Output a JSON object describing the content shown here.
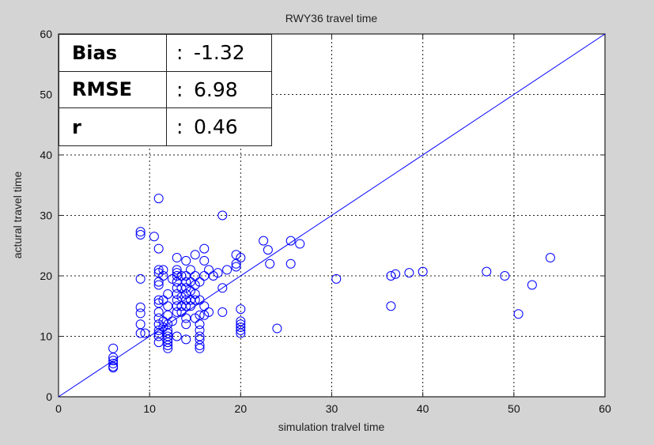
{
  "chart_data": {
    "type": "scatter",
    "title": "RWY36 travel time",
    "xlabel": "simulation tralvel time",
    "ylabel": "actural travel time",
    "xlim": [
      0,
      60
    ],
    "ylim": [
      0,
      60
    ],
    "xticks": [
      0,
      10,
      20,
      30,
      40,
      50,
      60
    ],
    "yticks": [
      0,
      10,
      20,
      30,
      40,
      50,
      60
    ],
    "grid": true,
    "grid_style": "dotted",
    "marker": "open-circle",
    "marker_color": "#0000ff",
    "reference_line": {
      "from": [
        0,
        0
      ],
      "to": [
        60,
        60
      ],
      "color": "#0000ff"
    },
    "points": [
      [
        6,
        8
      ],
      [
        6,
        6.5
      ],
      [
        6,
        6
      ],
      [
        6,
        5.5
      ],
      [
        6,
        5
      ],
      [
        6,
        4.8
      ],
      [
        9,
        27.3
      ],
      [
        9,
        26.8
      ],
      [
        10.5,
        26.5
      ],
      [
        11,
        32.8
      ],
      [
        9,
        19.5
      ],
      [
        9,
        14.8
      ],
      [
        9,
        13.8
      ],
      [
        9,
        12
      ],
      [
        9,
        10.5
      ],
      [
        9.5,
        10.5
      ],
      [
        11,
        24.5
      ],
      [
        11,
        21
      ],
      [
        11,
        20.5
      ],
      [
        11,
        19
      ],
      [
        11,
        18.5
      ],
      [
        11,
        16
      ],
      [
        11,
        15.5
      ],
      [
        11,
        14
      ],
      [
        11,
        13
      ],
      [
        11,
        12
      ],
      [
        11,
        11
      ],
      [
        11,
        10.5
      ],
      [
        11,
        10
      ],
      [
        11,
        9
      ],
      [
        11.5,
        21
      ],
      [
        11.5,
        20
      ],
      [
        11.5,
        16
      ],
      [
        11.5,
        12.5
      ],
      [
        11.5,
        11.5
      ],
      [
        12,
        17
      ],
      [
        12,
        15
      ],
      [
        12,
        13.5
      ],
      [
        12,
        12
      ],
      [
        12,
        11
      ],
      [
        12,
        10.5
      ],
      [
        12,
        10
      ],
      [
        12,
        9.5
      ],
      [
        12,
        9
      ],
      [
        12,
        8.5
      ],
      [
        12,
        8
      ],
      [
        12.5,
        19.5
      ],
      [
        12.5,
        12.5
      ],
      [
        13,
        23
      ],
      [
        13,
        21
      ],
      [
        13,
        20.5
      ],
      [
        13,
        20
      ],
      [
        13,
        19
      ],
      [
        13,
        18
      ],
      [
        13,
        17
      ],
      [
        13,
        16
      ],
      [
        13,
        15
      ],
      [
        13,
        14
      ],
      [
        13,
        10
      ],
      [
        13.5,
        20
      ],
      [
        13.5,
        18
      ],
      [
        13.5,
        16.5
      ],
      [
        13.5,
        15
      ],
      [
        13.5,
        14
      ],
      [
        14,
        22.5
      ],
      [
        14,
        20
      ],
      [
        14,
        19
      ],
      [
        14,
        18
      ],
      [
        14,
        17
      ],
      [
        14,
        16
      ],
      [
        14,
        15
      ],
      [
        14,
        13
      ],
      [
        14,
        12
      ],
      [
        14,
        9.5
      ],
      [
        14.5,
        21
      ],
      [
        14.5,
        19
      ],
      [
        14.5,
        17.5
      ],
      [
        14.5,
        16
      ],
      [
        14.5,
        15
      ],
      [
        15,
        23.5
      ],
      [
        15,
        20
      ],
      [
        15,
        18.5
      ],
      [
        15,
        17
      ],
      [
        15,
        16
      ],
      [
        15,
        13
      ],
      [
        15.5,
        19
      ],
      [
        15.5,
        16
      ],
      [
        15.5,
        13.5
      ],
      [
        15.5,
        12
      ],
      [
        15.5,
        11
      ],
      [
        15.5,
        10
      ],
      [
        15.5,
        9.5
      ],
      [
        15.5,
        8.5
      ],
      [
        15.5,
        8
      ],
      [
        16,
        24.5
      ],
      [
        16,
        22.5
      ],
      [
        16,
        20
      ],
      [
        16,
        15
      ],
      [
        16,
        13.5
      ],
      [
        16.5,
        21
      ],
      [
        16.5,
        14
      ],
      [
        17,
        20
      ],
      [
        17.5,
        20.5
      ],
      [
        18,
        30
      ],
      [
        18,
        18
      ],
      [
        18,
        14
      ],
      [
        18.5,
        21
      ],
      [
        19.5,
        21.5
      ],
      [
        19.5,
        22
      ],
      [
        19.5,
        23.5
      ],
      [
        20,
        23
      ],
      [
        20,
        14.5
      ],
      [
        20,
        12.5
      ],
      [
        20,
        12
      ],
      [
        20,
        11.5
      ],
      [
        20,
        11
      ],
      [
        20,
        10.5
      ],
      [
        22.5,
        25.8
      ],
      [
        23,
        24.3
      ],
      [
        23.2,
        22
      ],
      [
        24,
        11.3
      ],
      [
        25.5,
        25.8
      ],
      [
        25.5,
        22
      ],
      [
        26.5,
        25.3
      ],
      [
        30.5,
        19.5
      ],
      [
        36.5,
        15
      ],
      [
        36.5,
        20
      ],
      [
        37,
        20.3
      ],
      [
        38.5,
        20.5
      ],
      [
        40,
        20.7
      ],
      [
        47,
        20.7
      ],
      [
        49,
        20
      ],
      [
        50.5,
        13.7
      ],
      [
        52,
        18.5
      ],
      [
        54,
        23
      ]
    ],
    "stats": [
      {
        "label": "Bias",
        "value": "-1.32"
      },
      {
        "label": "RMSE",
        "value": "6.98"
      },
      {
        "label": "r",
        "value": "0.46"
      }
    ]
  },
  "stats_separator": ":"
}
